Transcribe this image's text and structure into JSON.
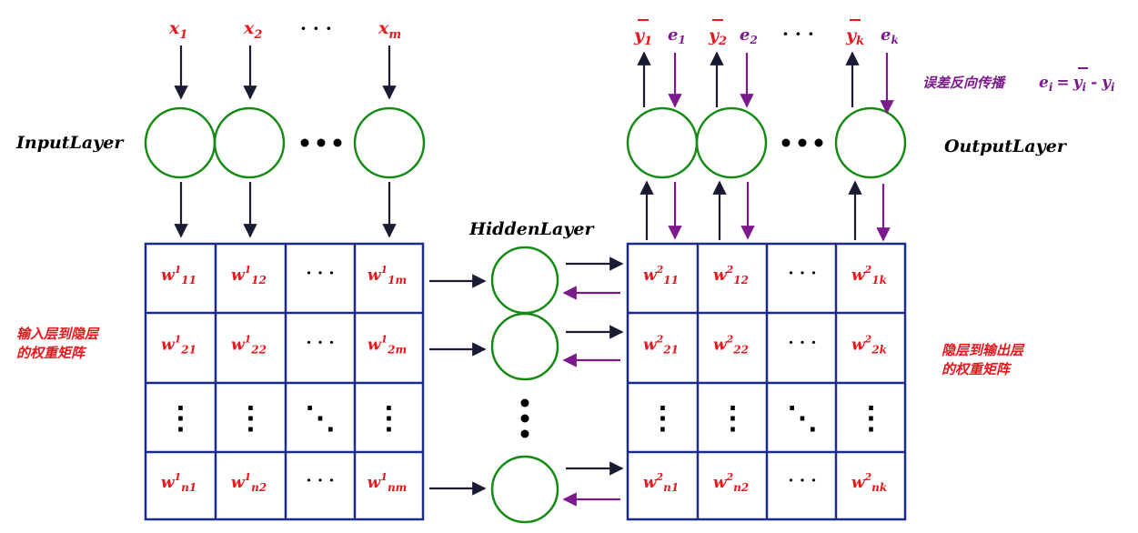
{
  "layers": {
    "input": "InputLayer",
    "hidden": "HiddenLayer",
    "output": "OutputLayer"
  },
  "inputs": {
    "x1": {
      "base": "x",
      "sub": "1"
    },
    "x2": {
      "base": "x",
      "sub": "2"
    },
    "dots": "· · ·",
    "xm": {
      "base": "x",
      "sub": "m"
    }
  },
  "outputs": {
    "y1": {
      "base": "y",
      "sub": "1"
    },
    "e1": {
      "base": "e",
      "sub": "1"
    },
    "y2": {
      "base": "y",
      "sub": "2"
    },
    "e2": {
      "base": "e",
      "sub": "2"
    },
    "dots": "· · ·",
    "yk": {
      "base": "y",
      "sub": "k"
    },
    "ek": {
      "base": "e",
      "sub": "k"
    }
  },
  "error_note": {
    "text": "误差反向传播",
    "e": "e",
    "ei_sub": "i",
    "eq": "=",
    "ybar": "y",
    "ybar_sub": "i",
    "minus": "-",
    "y": "y",
    "y_sub": "i"
  },
  "matrix1": {
    "rows": [
      [
        {
          "b": "w",
          "sup": "1",
          "sub": "11"
        },
        {
          "b": "w",
          "sup": "1",
          "sub": "12"
        },
        {
          "dots": "· · ·"
        },
        {
          "b": "w",
          "sup": "1",
          "sub": "1m"
        }
      ],
      [
        {
          "b": "w",
          "sup": "1",
          "sub": "21"
        },
        {
          "b": "w",
          "sup": "1",
          "sub": "22"
        },
        {
          "dots": "· · ·"
        },
        {
          "b": "w",
          "sup": "1",
          "sub": "2m"
        }
      ],
      [
        {
          "vdots": "⋮"
        },
        {
          "vdots": "⋮"
        },
        {
          "ddots": "⋱"
        },
        {
          "vdots": "⋮"
        }
      ],
      [
        {
          "b": "w",
          "sup": "1",
          "sub": "n1"
        },
        {
          "b": "w",
          "sup": "1",
          "sub": "n2"
        },
        {
          "dots": "· · ·"
        },
        {
          "b": "w",
          "sup": "1",
          "sub": "nm"
        }
      ]
    ]
  },
  "matrix2": {
    "rows": [
      [
        {
          "b": "w",
          "sup": "2",
          "sub": "11"
        },
        {
          "b": "w",
          "sup": "2",
          "sub": "12"
        },
        {
          "dots": "· · ·"
        },
        {
          "b": "w",
          "sup": "2",
          "sub": "1k"
        }
      ],
      [
        {
          "b": "w",
          "sup": "2",
          "sub": "21"
        },
        {
          "b": "w",
          "sup": "2",
          "sub": "22"
        },
        {
          "dots": "· · ·"
        },
        {
          "b": "w",
          "sup": "2",
          "sub": "2k"
        }
      ],
      [
        {
          "vdots": "⋮"
        },
        {
          "vdots": "⋮"
        },
        {
          "ddots": "⋱"
        },
        {
          "vdots": "⋮"
        }
      ],
      [
        {
          "b": "w",
          "sup": "2",
          "sub": "n1"
        },
        {
          "b": "w",
          "sup": "2",
          "sub": "n2"
        },
        {
          "dots": "· · ·"
        },
        {
          "b": "w",
          "sup": "2",
          "sub": "nk"
        }
      ]
    ]
  },
  "notes": {
    "left_line1": "输入层到隐层",
    "left_line2": "的权重矩阵",
    "right_line1": "隐层到输出层",
    "right_line2": "的权重矩阵"
  },
  "colors": {
    "node": "#158a15",
    "grid": "#1c2a8c",
    "label_red": "#e8161d",
    "label_purple": "#7b1a8c",
    "arrow_dark": "#1a1a33"
  }
}
